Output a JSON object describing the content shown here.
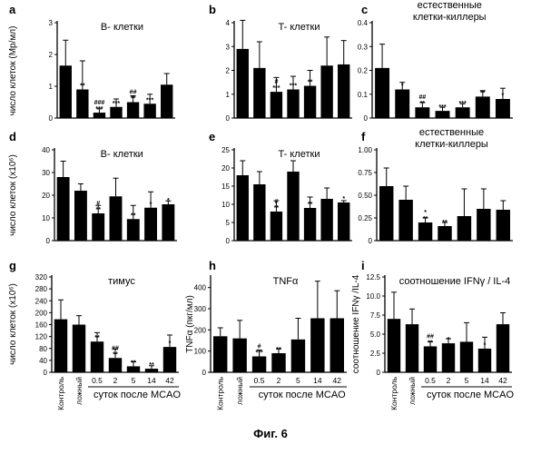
{
  "figure_caption": "Фиг. 6",
  "y_labels": {
    "row1": "число клеток (Мр/мл)",
    "row2": "число клеток (x10⁶)",
    "row3_g": "число клеток (x10⁶)",
    "row3_h": "TNFα (пкг/мл)",
    "row3_i": "соотношение IFNγ /IL-4"
  },
  "x_axis": {
    "categories": [
      "Контроль",
      "ложный",
      "0.5",
      "2",
      "5",
      "14",
      "42"
    ],
    "caption": "суток после MCAO"
  },
  "chart_data": [
    {
      "id": "a",
      "type": "bar",
      "letter": "a",
      "title": "B- клетки",
      "ylim": [
        0,
        3
      ],
      "yticks": [
        "0",
        "1",
        "2",
        "3"
      ],
      "categories": [
        "Контроль",
        "ложный",
        "0.5",
        "2",
        "5",
        "14",
        "42"
      ],
      "values": [
        1.65,
        0.9,
        0.17,
        0.35,
        0.5,
        0.45,
        1.05
      ],
      "errors": [
        0.8,
        0.9,
        0.12,
        0.25,
        0.2,
        0.3,
        0.35
      ],
      "sig": [
        "",
        "**",
        "###\n***",
        "***",
        "##\n**",
        "***",
        ""
      ]
    },
    {
      "id": "b",
      "type": "bar",
      "letter": "b",
      "title": "T- клетки",
      "ylim": [
        0,
        4
      ],
      "yticks": [
        "0",
        "1",
        "2",
        "3",
        "4"
      ],
      "categories": [
        "Контроль",
        "ложный",
        "0.5",
        "2",
        "5",
        "14",
        "42"
      ],
      "values": [
        2.9,
        2.1,
        1.1,
        1.2,
        1.35,
        2.2,
        2.25
      ],
      "errors": [
        1.2,
        1.1,
        0.6,
        0.55,
        0.65,
        1.2,
        1.0
      ],
      "sig": [
        "",
        "",
        "#\n***",
        "***",
        "**",
        "",
        ""
      ]
    },
    {
      "id": "c",
      "type": "bar",
      "letter": "c",
      "title": "естественные\nклетки-киллеры",
      "ylim": [
        0,
        0.4
      ],
      "yticks": [
        "0",
        "0.1",
        "0.2",
        "0.3",
        "0.4"
      ],
      "categories": [
        "Контроль",
        "ложный",
        "0.5",
        "2",
        "5",
        "14",
        "42"
      ],
      "values": [
        0.21,
        0.12,
        0.045,
        0.03,
        0.045,
        0.09,
        0.08
      ],
      "errors": [
        0.1,
        0.03,
        0.02,
        0.015,
        0.015,
        0.025,
        0.045
      ],
      "sig": [
        "",
        "*",
        "##\n**",
        "***",
        "***",
        "**",
        "*"
      ]
    },
    {
      "id": "d",
      "type": "bar",
      "letter": "d",
      "title": "B- клетки",
      "ylim": [
        0,
        40
      ],
      "yticks": [
        "0",
        "10",
        "20",
        "30",
        "40"
      ],
      "categories": [
        "Контроль",
        "ложный",
        "0.5",
        "2",
        "5",
        "14",
        "42"
      ],
      "values": [
        28,
        22,
        12,
        19.5,
        9.5,
        14.5,
        16
      ],
      "errors": [
        7,
        3,
        3.5,
        8,
        6,
        7,
        1.5
      ],
      "sig": [
        "",
        "",
        "#\n**",
        "",
        "**",
        "*",
        "*"
      ]
    },
    {
      "id": "e",
      "type": "bar",
      "letter": "e",
      "title": "T- клетки",
      "ylim": [
        0,
        25
      ],
      "yticks": [
        "0",
        "5",
        "10",
        "15",
        "20",
        "25"
      ],
      "categories": [
        "Контроль",
        "ложный",
        "0.5",
        "2",
        "5",
        "14",
        "42"
      ],
      "values": [
        18,
        15.5,
        8,
        19,
        9,
        11.5,
        10.5
      ],
      "errors": [
        4,
        3.5,
        3,
        3,
        3,
        3,
        0.5
      ],
      "sig": [
        "",
        "",
        "#\n**",
        "",
        "**",
        "",
        "*"
      ]
    },
    {
      "id": "f",
      "type": "bar",
      "letter": "f",
      "title": "естественные\nклетки-киллеры",
      "ylim": [
        0,
        1.0
      ],
      "yticks": [
        "0",
        "0.25",
        "0.50",
        "0.75",
        "1.00"
      ],
      "categories": [
        "Контроль",
        "ложный",
        "0.5",
        "2",
        "5",
        "14",
        "42"
      ],
      "values": [
        0.6,
        0.45,
        0.2,
        0.16,
        0.27,
        0.35,
        0.34
      ],
      "errors": [
        0.2,
        0.15,
        0.05,
        0.04,
        0.3,
        0.22,
        0.1
      ],
      "sig": [
        "",
        "",
        "*\n**",
        "**",
        "",
        "",
        ""
      ]
    },
    {
      "id": "g",
      "type": "bar",
      "letter": "g",
      "title": "тимус",
      "ylim": [
        0,
        320
      ],
      "yticks": [
        "0",
        "40",
        "80",
        "120",
        "160",
        "200",
        "240",
        "280",
        "320"
      ],
      "categories": [
        "Контроль",
        "ложный",
        "0.5",
        "2",
        "5",
        "14",
        "42"
      ],
      "values": [
        178,
        160,
        103,
        48,
        20,
        12,
        85
      ],
      "errors": [
        65,
        30,
        30,
        30,
        15,
        10,
        40
      ],
      "sig": [
        "",
        "",
        "**",
        "##\n**",
        "**",
        "**",
        "*"
      ]
    },
    {
      "id": "h",
      "type": "bar",
      "letter": "h",
      "title": "TNFα",
      "ylim": [
        0,
        450
      ],
      "yticks": [
        "0",
        "100",
        "200",
        "300",
        "400"
      ],
      "categories": [
        "Контроль",
        "ложный",
        "0.5",
        "2",
        "5",
        "14",
        "42"
      ],
      "values": [
        170,
        160,
        75,
        90,
        155,
        255,
        255
      ],
      "errors": [
        40,
        85,
        30,
        20,
        100,
        175,
        130
      ],
      "sig": [
        "",
        "",
        "#\n***",
        "**",
        "",
        "",
        ""
      ]
    },
    {
      "id": "i",
      "type": "bar",
      "letter": "i",
      "title": "соотношение IFNγ  / IL-4",
      "ylim": [
        0,
        12.5
      ],
      "yticks": [
        "0",
        "2.5",
        "5.0",
        "7.5",
        "10.0",
        "12.5"
      ],
      "categories": [
        "Контроль",
        "ложный",
        "0.5",
        "2",
        "5",
        "14",
        "42"
      ],
      "values": [
        7,
        6.3,
        3.4,
        3.8,
        4,
        3.1,
        6.3
      ],
      "errors": [
        3.5,
        2,
        0.6,
        0.6,
        2.5,
        1.5,
        1.5
      ],
      "sig": [
        "",
        "",
        "##\n**",
        "*",
        "",
        "*",
        ""
      ]
    }
  ]
}
